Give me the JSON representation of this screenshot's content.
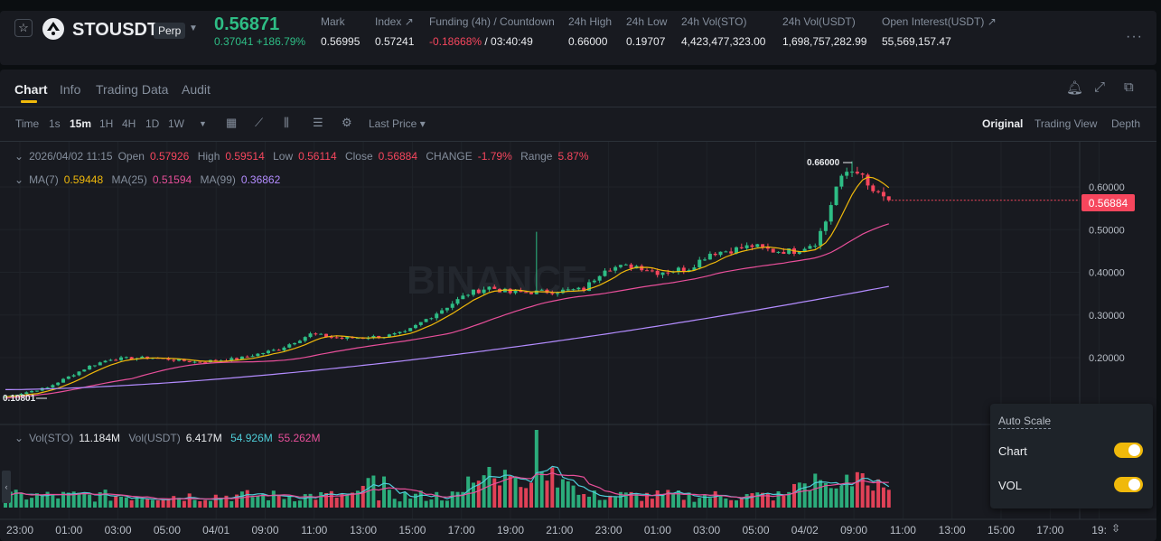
{
  "ticker": {
    "symbol": "STOUSDT",
    "perp": "Perp",
    "price": "0.56871",
    "change": "0.37041 +186.79%",
    "mark_label": "Mark",
    "mark": "0.56995",
    "index_label": "Index",
    "index": "0.57241",
    "funding_label": "Funding (4h) / Countdown",
    "funding_rate": "-0.18668%",
    "funding_countdown": "/ 03:40:49",
    "high_label": "24h High",
    "high": "0.66000",
    "low_label": "24h Low",
    "low": "0.19707",
    "vol_sto_label": "24h Vol(STO)",
    "vol_sto": "4,423,477,323.00",
    "vol_usdt_label": "24h Vol(USDT)",
    "vol_usdt": "1,698,757,282.99",
    "oi_label": "Open Interest(USDT)",
    "oi": "55,569,157.47"
  },
  "tabs": [
    "Chart",
    "Info",
    "Trading Data",
    "Audit"
  ],
  "toolbar": {
    "time": "Time",
    "intervals": [
      "1s",
      "15m",
      "1H",
      "4H",
      "1D",
      "1W"
    ],
    "selected_interval": "15m",
    "price_type": "Last Price",
    "views": [
      "Original",
      "Trading View",
      "Depth"
    ],
    "selected_view": "Original"
  },
  "ohlc": {
    "date": "2026/04/02 11:15",
    "open_label": "Open",
    "open": "0.57926",
    "high_label": "High",
    "high": "0.59514",
    "low_label": "Low",
    "low": "0.56114",
    "close_label": "Close",
    "close": "0.56884",
    "change_label": "CHANGE",
    "change": "-1.79%",
    "range_label": "Range",
    "range": "5.87%"
  },
  "ma": {
    "ma7_label": "MA(7)",
    "ma7": "0.59448",
    "ma25_label": "MA(25)",
    "ma25": "0.51594",
    "ma99_label": "MA(99)",
    "ma99": "0.36862"
  },
  "volume": {
    "label_sto": "Vol(STO)",
    "sto": "11.184M",
    "label_usdt": "Vol(USDT)",
    "usdt": "6.417M",
    "ma1": "54.926M",
    "ma2": "55.262M"
  },
  "watermark": "BINANCE",
  "chart_data": {
    "type": "candlestick",
    "y_ticks": [
      "0.60000",
      "0.50000",
      "0.40000",
      "0.30000",
      "0.20000"
    ],
    "ylim": [
      0.1,
      0.66
    ],
    "x_ticks": [
      "23:00",
      "01:00",
      "03:00",
      "05:00",
      "04/01",
      "09:00",
      "11:00",
      "13:00",
      "15:00",
      "17:00",
      "19:00",
      "21:00",
      "23:00",
      "01:00",
      "03:00",
      "05:00",
      "04/02",
      "09:00",
      "11:00",
      "13:00",
      "15:00",
      "17:00",
      "19:"
    ],
    "current_price": "0.56884",
    "max_marker": "0.66000",
    "min_marker": "0.10801",
    "anchors": [
      [
        0,
        0.108
      ],
      [
        8,
        0.13
      ],
      [
        12,
        0.155
      ],
      [
        16,
        0.18
      ],
      [
        20,
        0.197
      ],
      [
        28,
        0.2
      ],
      [
        36,
        0.19
      ],
      [
        44,
        0.197
      ],
      [
        52,
        0.22
      ],
      [
        58,
        0.255
      ],
      [
        64,
        0.245
      ],
      [
        72,
        0.25
      ],
      [
        76,
        0.258
      ],
      [
        80,
        0.29
      ],
      [
        84,
        0.32
      ],
      [
        88,
        0.35
      ],
      [
        92,
        0.365
      ],
      [
        96,
        0.352
      ],
      [
        104,
        0.355
      ],
      [
        110,
        0.36
      ],
      [
        114,
        0.41
      ],
      [
        120,
        0.415
      ],
      [
        124,
        0.4
      ],
      [
        130,
        0.41
      ],
      [
        134,
        0.445
      ],
      [
        138,
        0.452
      ],
      [
        142,
        0.462
      ],
      [
        146,
        0.45
      ],
      [
        150,
        0.45
      ],
      [
        154,
        0.47
      ],
      [
        156,
        0.52
      ],
      [
        158,
        0.6
      ],
      [
        160,
        0.635
      ],
      [
        162,
        0.64
      ],
      [
        164,
        0.6
      ],
      [
        166,
        0.58
      ],
      [
        168,
        0.569
      ]
    ]
  },
  "autoscale": {
    "title": "Auto Scale",
    "chart": "Chart",
    "vol": "VOL"
  }
}
